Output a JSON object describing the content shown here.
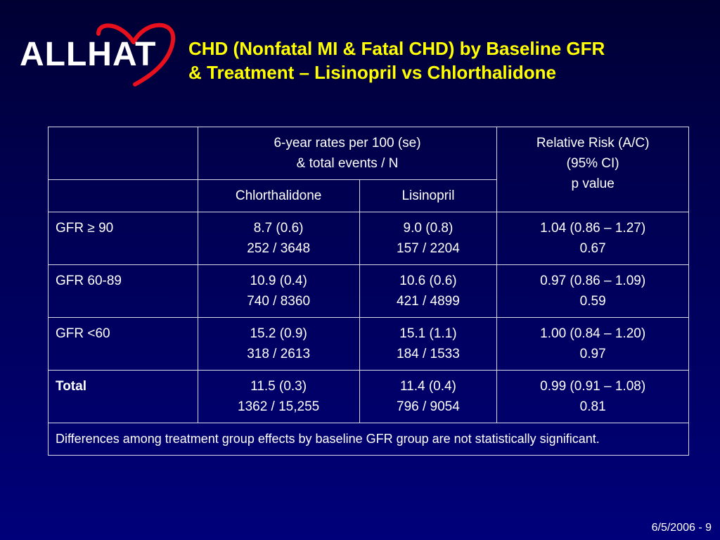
{
  "logo": {
    "text": "ALLHAT",
    "heart_color": "#e8101c"
  },
  "title": {
    "line1": "CHD (Nonfatal MI & Fatal CHD) by Baseline GFR",
    "line2": "& Treatment – Lisinopril vs Chlorthalidone",
    "color": "#ffff00"
  },
  "table": {
    "header_rates_line1": "6-year rates per 100 (se)",
    "header_rates_line2": "& total events / N",
    "header_rr_line1": "Relative Risk (A/C)",
    "header_rr_line2": "(95% CI)",
    "header_rr_line3": "p value",
    "col_chlorthalidone": "Chlorthalidone",
    "col_lisinopril": "Lisinopril",
    "rows": [
      {
        "label": "GFR ≥ 90",
        "c_rate": "8.7 (0.6)",
        "c_events": "252 / 3648",
        "l_rate": "9.0 (0.8)",
        "l_events": "157 / 2204",
        "rr": "1.04 (0.86 – 1.27)",
        "p": "0.67"
      },
      {
        "label": "GFR 60-89",
        "c_rate": "10.9 (0.4)",
        "c_events": "740 / 8360",
        "l_rate": "10.6 (0.6)",
        "l_events": "421 / 4899",
        "rr": "0.97 (0.86 – 1.09)",
        "p": "0.59"
      },
      {
        "label": "GFR <60",
        "c_rate": "15.2 (0.9)",
        "c_events": "318 / 2613",
        "l_rate": "15.1 (1.1)",
        "l_events": "184 / 1533",
        "rr": "1.00 (0.84 – 1.20)",
        "p": "0.97"
      },
      {
        "label": "Total",
        "c_rate": "11.5 (0.3)",
        "c_events": "1362 / 15,255",
        "l_rate": "11.4 (0.4)",
        "l_events": "796 / 9054",
        "rr": "0.99 (0.91 – 1.08)",
        "p": "0.81"
      }
    ],
    "note": "Differences among treatment group effects by baseline GFR group are not statistically significant."
  },
  "footer": {
    "slide_label": "6/5/2006 - 9"
  }
}
